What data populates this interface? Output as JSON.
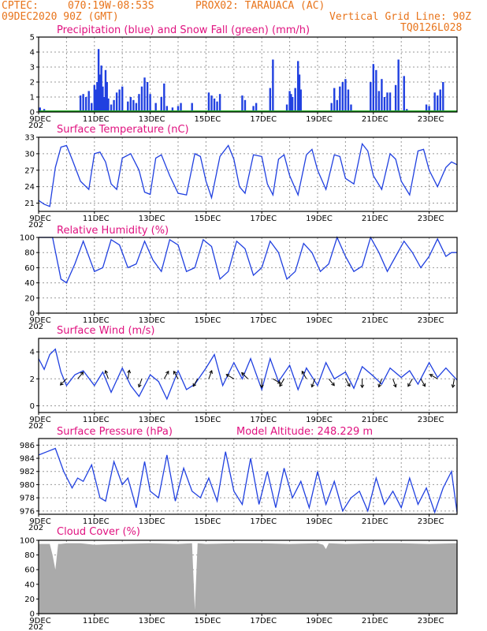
{
  "header": {
    "source": "CPTEC:",
    "coords": "070:19W-08:53S",
    "station": "PROX02: TARAUACA (AC)",
    "init": "09DEC2020 90Z (GMT)",
    "grid_note": "Vertical Grid Line: 90Z",
    "code": "TQ0126L028"
  },
  "x_axis": {
    "days_total": 15,
    "tick_labels": [
      "9DEC",
      "11DEC",
      "13DEC",
      "15DEC",
      "17DEC",
      "19DEC",
      "21DEC",
      "23DEC"
    ],
    "tick_days": [
      0,
      2,
      4,
      6,
      8,
      10,
      12,
      14
    ],
    "year_stub": "202"
  },
  "chart_data": [
    {
      "id": "precip",
      "type": "bar",
      "title": "Precipitation (blue) and Snow Fall (green) (mm/h)",
      "ylim": [
        0,
        5
      ],
      "yticks": [
        0,
        1,
        2,
        3,
        4,
        5
      ],
      "series": [
        {
          "name": "Precipitation",
          "color": "#2040e0",
          "x": [
            0.05,
            0.2,
            1.5,
            1.6,
            1.7,
            1.8,
            1.9,
            2.0,
            2.05,
            2.1,
            2.15,
            2.2,
            2.25,
            2.3,
            2.35,
            2.4,
            2.45,
            2.5,
            2.6,
            2.7,
            2.8,
            2.9,
            3.0,
            3.2,
            3.3,
            3.4,
            3.5,
            3.6,
            3.7,
            3.8,
            3.9,
            4.0,
            4.2,
            4.4,
            4.5,
            4.6,
            4.8,
            5.0,
            5.1,
            5.5,
            6.1,
            6.2,
            6.3,
            6.4,
            6.5,
            7.3,
            7.4,
            7.7,
            7.8,
            8.3,
            8.4,
            8.9,
            9.0,
            9.05,
            9.1,
            9.2,
            9.3,
            9.35,
            9.4,
            10.5,
            10.6,
            10.7,
            10.8,
            10.9,
            11.0,
            11.1,
            11.2,
            11.9,
            12.0,
            12.1,
            12.2,
            12.3,
            12.4,
            12.5,
            12.6,
            12.8,
            12.9,
            13.1,
            13.2,
            13.9,
            14.0,
            14.2,
            14.3,
            14.4,
            14.5
          ],
          "values": [
            0.3,
            0.2,
            1.1,
            1.2,
            1.0,
            1.4,
            0.6,
            1.8,
            1.5,
            2.0,
            4.2,
            2.5,
            3.1,
            1.7,
            1.0,
            2.8,
            2.0,
            0.9,
            0.5,
            0.8,
            1.3,
            1.5,
            1.7,
            0.7,
            1.0,
            0.8,
            0.6,
            1.2,
            1.7,
            2.3,
            2.0,
            1.2,
            0.6,
            1.0,
            1.9,
            0.4,
            0.3,
            0.4,
            0.6,
            0.6,
            1.3,
            1.1,
            0.9,
            0.7,
            1.2,
            1.1,
            0.8,
            0.4,
            0.6,
            1.6,
            3.5,
            0.5,
            1.4,
            1.2,
            1.0,
            1.6,
            3.4,
            2.5,
            1.5,
            0.6,
            1.6,
            0.8,
            1.7,
            2.0,
            2.2,
            1.5,
            0.5,
            2.0,
            3.2,
            2.8,
            1.4,
            2.2,
            1.0,
            1.3,
            1.3,
            1.8,
            3.5,
            2.4,
            0.2,
            0.5,
            0.4,
            1.3,
            1.1,
            1.5,
            2.0
          ]
        },
        {
          "name": "Snow Fall",
          "color": "#22aa22",
          "x": [
            0,
            15
          ],
          "values": [
            0,
            0
          ]
        }
      ]
    },
    {
      "id": "temp",
      "type": "line",
      "title": "Surface Temperature (nC)",
      "ylim": [
        19.5,
        33
      ],
      "yticks": [
        21,
        24,
        27,
        30,
        33
      ],
      "color": "#2040e0",
      "x": [
        0,
        0.2,
        0.4,
        0.6,
        0.8,
        1.0,
        1.2,
        1.5,
        1.8,
        2.0,
        2.2,
        2.4,
        2.6,
        2.8,
        3.0,
        3.3,
        3.6,
        3.8,
        4.0,
        4.2,
        4.4,
        4.7,
        5.0,
        5.3,
        5.6,
        5.8,
        6.0,
        6.2,
        6.5,
        6.8,
        7.0,
        7.2,
        7.4,
        7.7,
        8.0,
        8.2,
        8.4,
        8.6,
        8.8,
        9.0,
        9.3,
        9.6,
        9.8,
        10.0,
        10.3,
        10.6,
        10.8,
        11.0,
        11.3,
        11.6,
        11.8,
        12.0,
        12.3,
        12.6,
        12.8,
        13.0,
        13.3,
        13.6,
        13.8,
        14.0,
        14.3,
        14.6,
        14.8,
        15.0
      ],
      "values": [
        21.5,
        20.8,
        20.4,
        27.5,
        31.2,
        31.5,
        29.0,
        25.0,
        23.5,
        30.0,
        30.3,
        28.5,
        24.5,
        23.5,
        29.2,
        30.0,
        27.0,
        23.0,
        22.6,
        29.2,
        29.8,
        26.0,
        22.8,
        22.5,
        30.0,
        29.5,
        25.0,
        22.0,
        29.5,
        31.5,
        29.0,
        24.0,
        22.8,
        29.8,
        29.5,
        24.5,
        22.5,
        29.0,
        29.8,
        26.0,
        22.5,
        29.8,
        30.8,
        27.0,
        23.5,
        29.8,
        29.5,
        25.5,
        24.5,
        31.8,
        30.5,
        26.0,
        23.5,
        30.0,
        29.0,
        25.0,
        22.5,
        30.5,
        30.8,
        27.0,
        24.0,
        27.5,
        28.5,
        28.0
      ]
    },
    {
      "id": "rh",
      "type": "line",
      "title": "Relative Humidity (%)",
      "ylim": [
        0,
        100
      ],
      "yticks": [
        0,
        20,
        40,
        60,
        80,
        100
      ],
      "color": "#2040e0",
      "x": [
        0,
        0.2,
        0.5,
        0.8,
        1.0,
        1.3,
        1.6,
        2.0,
        2.3,
        2.6,
        2.9,
        3.2,
        3.5,
        3.8,
        4.1,
        4.4,
        4.7,
        5.0,
        5.3,
        5.6,
        5.9,
        6.2,
        6.5,
        6.8,
        7.1,
        7.4,
        7.7,
        8.0,
        8.3,
        8.6,
        8.9,
        9.2,
        9.5,
        9.8,
        10.1,
        10.4,
        10.7,
        11.0,
        11.3,
        11.6,
        11.9,
        12.2,
        12.5,
        12.8,
        13.1,
        13.4,
        13.7,
        14.0,
        14.3,
        14.6,
        14.8,
        15.0
      ],
      "values": [
        100,
        100,
        100,
        45,
        40,
        65,
        95,
        55,
        60,
        97,
        90,
        60,
        65,
        95,
        70,
        55,
        97,
        90,
        55,
        60,
        97,
        88,
        45,
        55,
        95,
        85,
        50,
        60,
        95,
        80,
        45,
        55,
        92,
        80,
        55,
        65,
        100,
        75,
        55,
        62,
        100,
        80,
        55,
        75,
        95,
        80,
        60,
        75,
        98,
        75,
        80,
        80
      ]
    },
    {
      "id": "wind",
      "type": "line",
      "title": "Surface Wind (m/s)",
      "ylim": [
        -0.5,
        5.0
      ],
      "yticks": [
        0,
        2,
        4
      ],
      "color": "#2040e0",
      "x": [
        0,
        0.2,
        0.4,
        0.6,
        0.8,
        1.0,
        1.3,
        1.6,
        2.0,
        2.3,
        2.6,
        3.0,
        3.3,
        3.6,
        4.0,
        4.3,
        4.6,
        5.0,
        5.3,
        5.6,
        6.0,
        6.3,
        6.6,
        7.0,
        7.3,
        7.6,
        8.0,
        8.3,
        8.6,
        9.0,
        9.3,
        9.6,
        10.0,
        10.3,
        10.6,
        11.0,
        11.3,
        11.6,
        12.0,
        12.3,
        12.6,
        13.0,
        13.3,
        13.6,
        14.0,
        14.3,
        14.6,
        15.0
      ],
      "values": [
        3.5,
        2.7,
        3.8,
        4.2,
        2.5,
        1.5,
        2.3,
        2.6,
        1.5,
        2.5,
        1.0,
        2.8,
        1.5,
        0.7,
        2.3,
        1.8,
        0.5,
        2.6,
        1.2,
        1.6,
        2.8,
        3.8,
        1.5,
        3.2,
        2.0,
        3.5,
        1.2,
        3.5,
        1.8,
        3.0,
        1.2,
        2.8,
        1.5,
        3.2,
        2.0,
        2.5,
        1.3,
        2.9,
        2.2,
        1.6,
        2.8,
        2.1,
        2.6,
        1.6,
        3.2,
        2.1,
        2.8,
        1.9
      ],
      "arrows": [
        [
          1.0,
          225
        ],
        [
          1.4,
          40
        ],
        [
          2.5,
          340
        ],
        [
          3.2,
          10
        ],
        [
          3.7,
          200
        ],
        [
          4.5,
          30
        ],
        [
          5.0,
          330
        ],
        [
          5.7,
          210
        ],
        [
          6.1,
          20
        ],
        [
          7.0,
          300
        ],
        [
          7.5,
          315
        ],
        [
          8.0,
          180
        ],
        [
          8.4,
          120
        ],
        [
          8.8,
          210
        ],
        [
          9.6,
          330
        ],
        [
          9.9,
          200
        ],
        [
          10.4,
          140
        ],
        [
          11.0,
          150
        ],
        [
          11.6,
          180
        ],
        [
          12.3,
          200
        ],
        [
          12.7,
          160
        ],
        [
          13.4,
          210
        ],
        [
          13.7,
          150
        ],
        [
          14.3,
          300
        ],
        [
          14.9,
          190
        ]
      ]
    },
    {
      "id": "pres",
      "type": "line",
      "title": "Surface Pressure (hPa)",
      "subtitle": "Model Altitude: 248.229 m",
      "ylim": [
        975.5,
        987
      ],
      "yticks": [
        976,
        978,
        980,
        982,
        984,
        986
      ],
      "color": "#2040e0",
      "x": [
        0,
        0.3,
        0.6,
        0.9,
        1.2,
        1.4,
        1.6,
        1.9,
        2.2,
        2.4,
        2.7,
        3.0,
        3.2,
        3.5,
        3.8,
        4.0,
        4.3,
        4.6,
        4.9,
        5.2,
        5.5,
        5.8,
        6.1,
        6.4,
        6.7,
        7.0,
        7.3,
        7.6,
        7.9,
        8.2,
        8.5,
        8.8,
        9.1,
        9.4,
        9.7,
        10.0,
        10.3,
        10.6,
        10.9,
        11.2,
        11.5,
        11.8,
        12.1,
        12.4,
        12.7,
        13.0,
        13.3,
        13.6,
        13.9,
        14.2,
        14.5,
        14.8,
        15.0
      ],
      "values": [
        984.5,
        985,
        985.5,
        982,
        979.5,
        981,
        980.5,
        983,
        978,
        977.5,
        983.5,
        980,
        981,
        976.5,
        983.5,
        979,
        978,
        984.5,
        977.5,
        982.5,
        979,
        978,
        981,
        977.5,
        985,
        979,
        977,
        984,
        977,
        982,
        976.5,
        982.5,
        978,
        980.5,
        976.5,
        982,
        977,
        980.5,
        976,
        978,
        979,
        976,
        981,
        977,
        979,
        976.5,
        981,
        977,
        979.5,
        975.8,
        979.5,
        982,
        975.8
      ]
    },
    {
      "id": "cloud",
      "type": "area",
      "title": "Cloud Cover (%)",
      "ylim": [
        0,
        100
      ],
      "yticks": [
        0,
        20,
        40,
        60,
        80,
        100
      ],
      "color": "#aaaaaa",
      "x": [
        0,
        0.4,
        0.5,
        0.6,
        0.7,
        0.8,
        1.0,
        1.5,
        2.0,
        3.0,
        4.0,
        5.0,
        5.5,
        5.6,
        5.7,
        6.0,
        7.0,
        8.0,
        9.0,
        10.0,
        10.2,
        10.3,
        10.4,
        11.0,
        12.0,
        13.0,
        14.0,
        15.0
      ],
      "values": [
        95,
        95,
        80,
        60,
        95,
        95,
        96,
        96,
        94,
        95,
        96,
        95,
        96,
        5,
        96,
        95,
        96,
        96,
        95,
        96,
        94,
        88,
        96,
        95,
        96,
        96,
        95,
        96
      ]
    }
  ]
}
